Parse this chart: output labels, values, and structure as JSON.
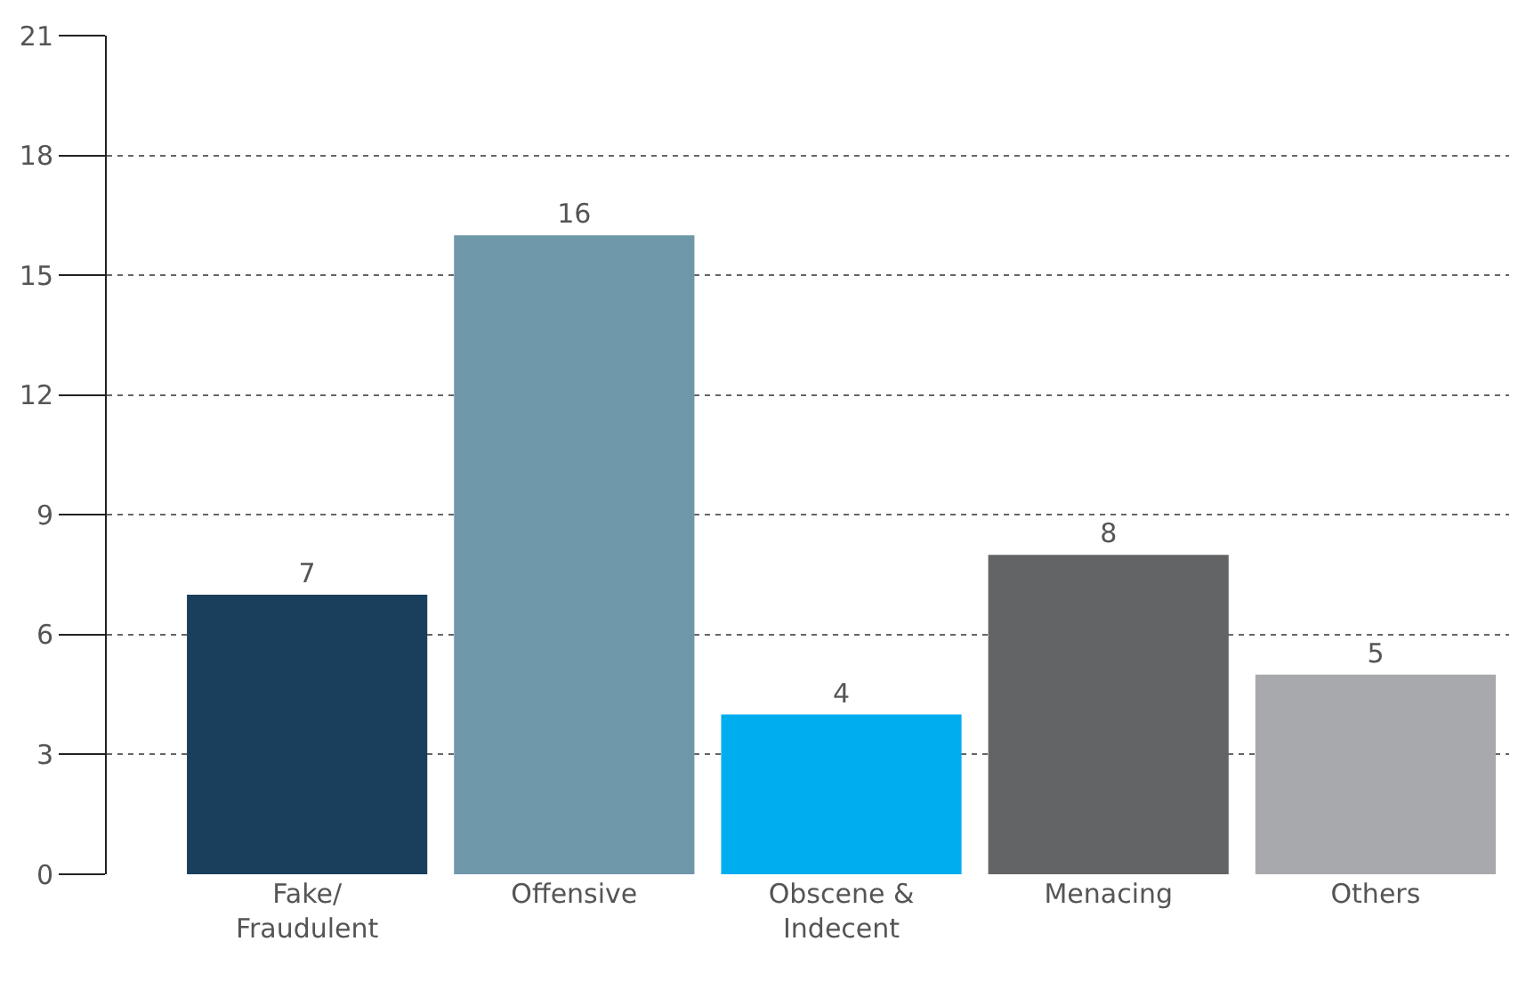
{
  "chart_data": {
    "type": "bar",
    "categories": [
      "Fake/\nFraudulent",
      "Offensive",
      "Obscene &\nIndecent",
      "Menacing",
      "Others"
    ],
    "values": [
      7,
      16,
      4,
      8,
      5
    ],
    "colors": [
      "#1a3f5c",
      "#6f97aa",
      "#00adee",
      "#636466",
      "#a7a9ac"
    ],
    "ylim": [
      0,
      21
    ],
    "yticks": [
      0,
      3,
      6,
      9,
      12,
      15,
      18,
      21
    ],
    "grid": "y",
    "line_style": "dotted",
    "data_labels": true
  }
}
